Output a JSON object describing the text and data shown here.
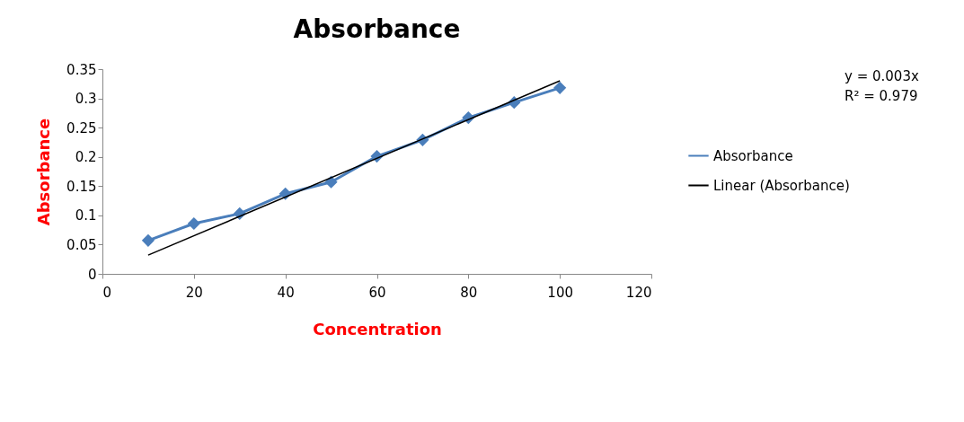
{
  "chart_data": {
    "type": "line",
    "title": "Absorbance",
    "xlabel": "Concentration",
    "ylabel": "Absorbance",
    "x": [
      10,
      20,
      30,
      40,
      50,
      60,
      70,
      80,
      90,
      100
    ],
    "series": [
      {
        "name": "Absorbance",
        "color": "#4a7ebb",
        "marker": "diamond",
        "values": [
          0.057,
          0.086,
          0.103,
          0.137,
          0.157,
          0.201,
          0.229,
          0.267,
          0.293,
          0.318
        ]
      },
      {
        "name": "Linear (Absorbance)",
        "type": "line",
        "color": "#000000",
        "marker": "none",
        "x": [
          10,
          100
        ],
        "values": [
          0.032,
          0.33
        ]
      }
    ],
    "xlim": [
      0,
      120
    ],
    "xticks": [
      0,
      20,
      40,
      60,
      80,
      100,
      120
    ],
    "ylim": [
      0,
      0.35
    ],
    "yticks": [
      0,
      0.05,
      0.1,
      0.15,
      0.2,
      0.25,
      0.3,
      0.35
    ],
    "grid": false,
    "legend": "right",
    "annotations": [
      "y = 0.003x",
      "R² = 0.979"
    ]
  }
}
